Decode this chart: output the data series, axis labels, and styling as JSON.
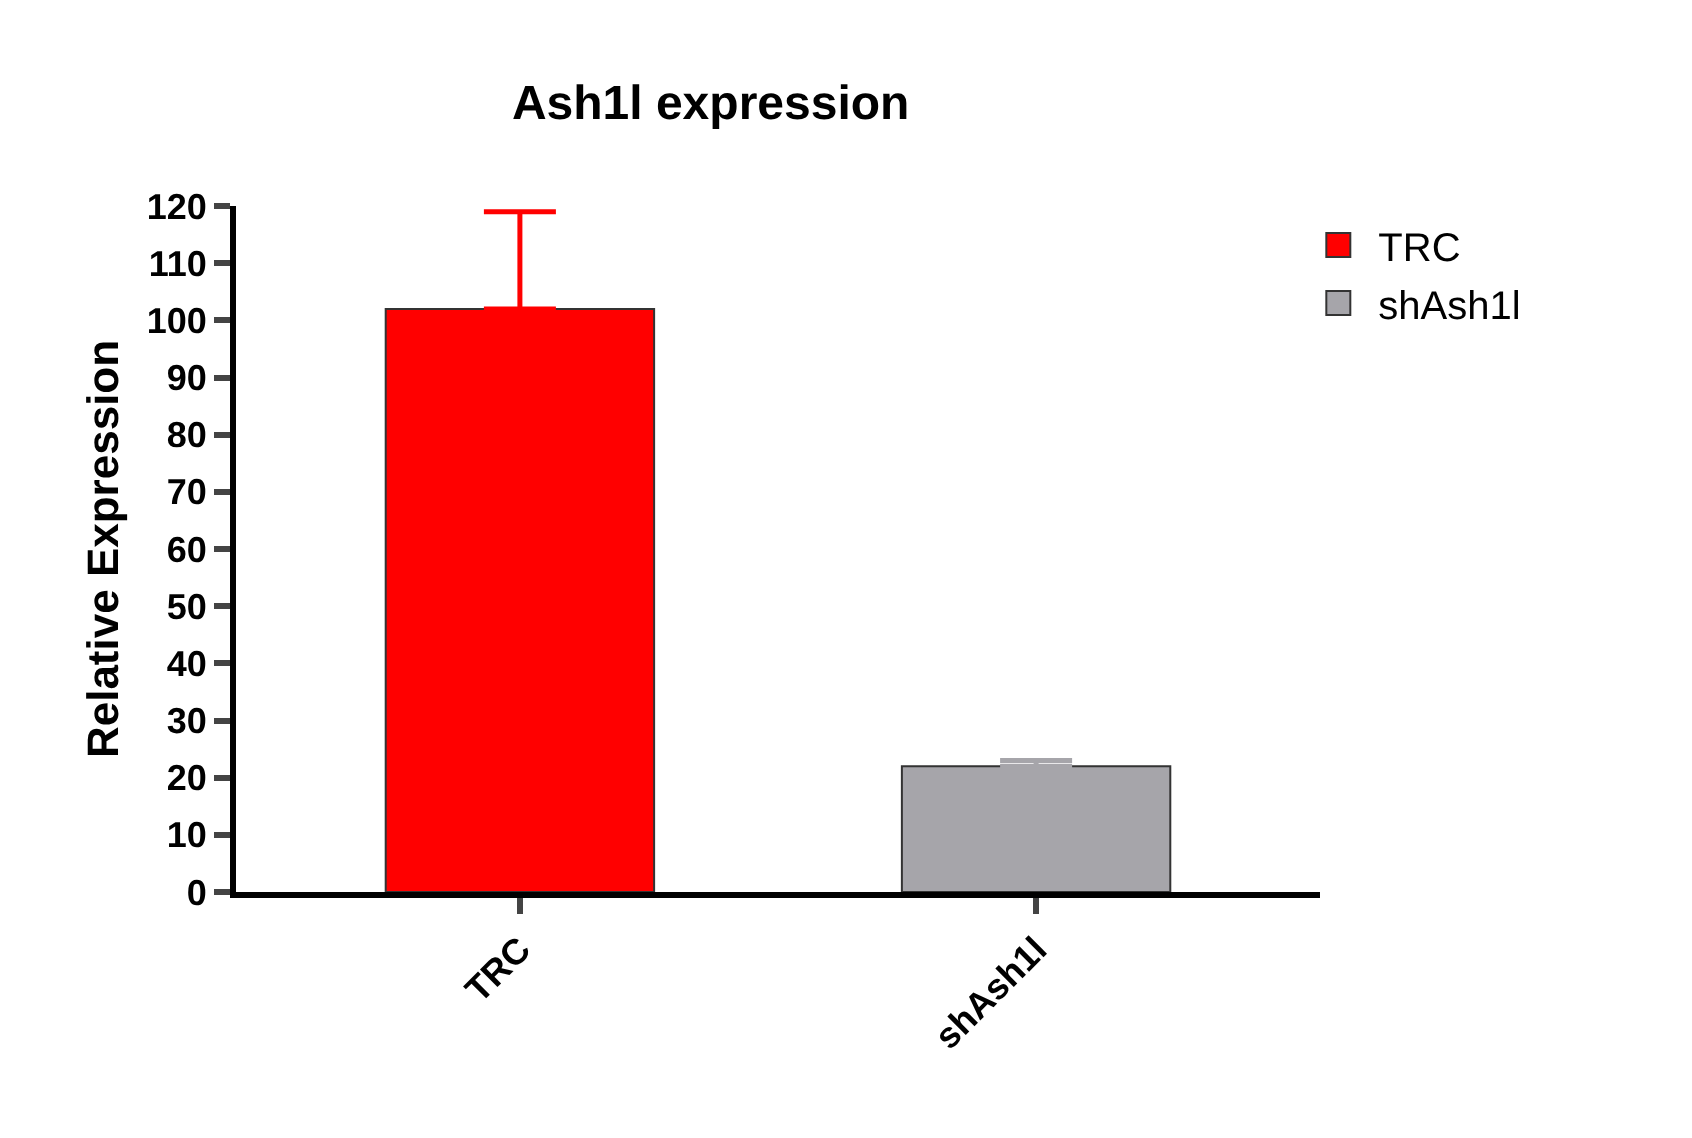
{
  "chart_data": {
    "type": "bar",
    "title": "Ash1l expression",
    "ylabel": "Relative Expression",
    "categories": [
      "TRC",
      "shAsh1l"
    ],
    "series": [
      {
        "name": "TRC",
        "color": "#ff0000",
        "values": [
          102,
          null
        ],
        "errors": [
          [
            102,
            119
          ],
          null
        ]
      },
      {
        "name": "shAsh1l",
        "color": "#a6a5aa",
        "values": [
          null,
          22
        ],
        "errors": [
          null,
          [
            22,
            23
          ]
        ]
      }
    ],
    "ylim": [
      0,
      120
    ],
    "yticks": [
      0,
      10,
      20,
      30,
      40,
      50,
      60,
      70,
      80,
      90,
      100,
      110,
      120
    ],
    "legend": "top right"
  }
}
